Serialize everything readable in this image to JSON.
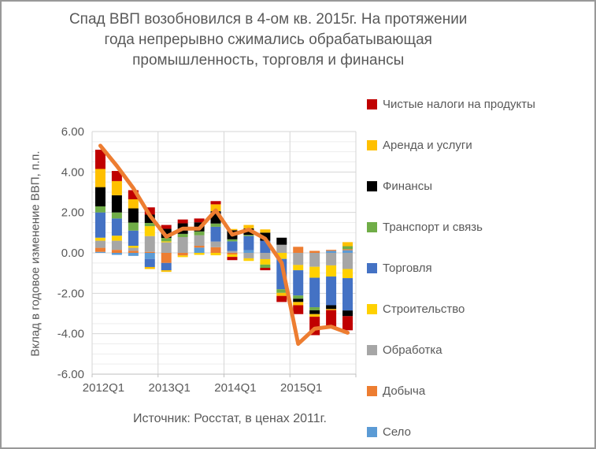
{
  "title": "Спад ВВП возобновился в 4-ом кв. 2015г. На протяжении года непрерывно сжимались обрабатывающая промышленность, торговля и финансы",
  "source": "Источник: Росстат, в ценах 2011г.",
  "y_axis": {
    "label": "Вклад в годовое изменение ВВП, п.п.",
    "tick_labels": [
      "6.00",
      "4.00",
      "2.00",
      "0.00",
      "-2.00",
      "-4.00",
      "-6.00"
    ],
    "tick_values": [
      6,
      4,
      2,
      0,
      -2,
      -4,
      -6
    ]
  },
  "x_axis": {
    "tick_labels": [
      "2012Q1",
      "2013Q1",
      "2014Q1",
      "2015Q1"
    ],
    "tick_indices": [
      0,
      4,
      8,
      12
    ]
  },
  "legend": [
    {
      "label": "Чистые налоги на продукты",
      "color": "#C00000"
    },
    {
      "label": "Аренда и услуги",
      "color": "#FFC000"
    },
    {
      "label": "Финансы",
      "color": "#000000"
    },
    {
      "label": "Транспорт и связь",
      "color": "#70AD47"
    },
    {
      "label": "Торговля",
      "color": "#4472C4"
    },
    {
      "label": "Строительство",
      "color": "#FFD100"
    },
    {
      "label": "Обработка",
      "color": "#A6A6A6"
    },
    {
      "label": "Добыча",
      "color": "#ED7D31"
    },
    {
      "label": "Село",
      "color": "#5B9BD5"
    }
  ],
  "chart_data": {
    "type": "bar",
    "subtype": "stacked-column-with-line",
    "title": "Спад ВВП возобновился в 4-ом кв. 2015г. На протяжении года непрерывно сжимались обрабатывающая промышленность, торговля и финансы",
    "ylabel": "Вклад в годовое изменение ВВП, п.п.",
    "ylim": [
      -6,
      6
    ],
    "y_major_step": 2,
    "y_minor_step": 0.5,
    "grid": true,
    "legend_position": "right",
    "categories": [
      "2012Q1",
      "2012Q2",
      "2012Q3",
      "2012Q4",
      "2013Q1",
      "2013Q2",
      "2013Q3",
      "2013Q4",
      "2014Q1",
      "2014Q2",
      "2014Q3",
      "2014Q4",
      "2015Q1",
      "2015Q2",
      "2015Q3",
      "2015Q4"
    ],
    "series": [
      {
        "name": "Село",
        "color": "#5B9BD5",
        "values": [
          0.05,
          -0.1,
          -0.15,
          -0.3,
          0.0,
          0.0,
          0.26,
          0.0,
          0.0,
          0.13,
          0.0,
          0.0,
          0.0,
          0.0,
          0.1,
          0.13
        ]
      },
      {
        "name": "Добыча",
        "color": "#ED7D31",
        "values": [
          0.2,
          0.15,
          0.1,
          0.05,
          -0.5,
          -0.13,
          0.09,
          0.28,
          -0.08,
          0.0,
          0.0,
          0.0,
          0.3,
          0.1,
          0.05,
          0.05
        ]
      },
      {
        "name": "Обработка",
        "color": "#A6A6A6",
        "values": [
          0.35,
          0.45,
          0.15,
          0.78,
          0.52,
          0.78,
          0.52,
          0.28,
          0.09,
          -0.27,
          -0.31,
          0.4,
          -0.6,
          -0.69,
          -0.62,
          -0.8
        ]
      },
      {
        "name": "Строительство",
        "color": "#FFD100",
        "values": [
          0.15,
          0.25,
          0.1,
          0.49,
          0.05,
          -0.08,
          -0.1,
          -0.12,
          -0.12,
          -0.13,
          -0.27,
          -0.3,
          -0.26,
          -0.54,
          -0.55,
          -0.45
        ]
      },
      {
        "name": "Торговля",
        "color": "#4472C4",
        "values": [
          1.25,
          0.85,
          0.75,
          -0.4,
          -0.36,
          0.0,
          0.0,
          0.73,
          0.48,
          0.7,
          0.6,
          -1.5,
          -1.25,
          -1.46,
          -1.42,
          -1.6
        ]
      },
      {
        "name": "Транспорт и связь",
        "color": "#70AD47",
        "values": [
          0.3,
          0.3,
          0.4,
          0.16,
          0.17,
          0.16,
          0.19,
          0.16,
          0.1,
          0.06,
          -0.16,
          -0.18,
          -0.16,
          -0.15,
          0.0,
          0.15
        ]
      },
      {
        "name": "Финансы",
        "color": "#000000",
        "values": [
          0.95,
          0.85,
          0.7,
          0.41,
          0.45,
          0.52,
          0.45,
          0.61,
          0.45,
          0.32,
          0.4,
          0.35,
          -0.16,
          -0.19,
          -0.19,
          -0.28
        ]
      },
      {
        "name": "Аренда и услуги",
        "color": "#FFC000",
        "values": [
          0.9,
          0.7,
          0.45,
          -0.1,
          -0.08,
          0.0,
          0.0,
          0.34,
          0.06,
          0.17,
          0.16,
          -0.15,
          -0.16,
          -0.13,
          -0.05,
          0.2
        ]
      },
      {
        "name": "Чистые налоги на продукты",
        "color": "#C00000",
        "values": [
          0.95,
          0.5,
          0.45,
          0.36,
          0.19,
          0.19,
          0.19,
          0.16,
          -0.16,
          0.0,
          -0.12,
          -0.3,
          -0.44,
          -0.91,
          -0.85,
          -0.7
        ]
      }
    ],
    "line": {
      "name": "ВВП",
      "color": "#ED7D31",
      "values": [
        5.3,
        4.3,
        3.2,
        1.85,
        0.8,
        1.2,
        1.2,
        2.1,
        0.9,
        1.15,
        0.7,
        -0.5,
        -4.5,
        -3.75,
        -3.65,
        -3.95
      ]
    }
  }
}
